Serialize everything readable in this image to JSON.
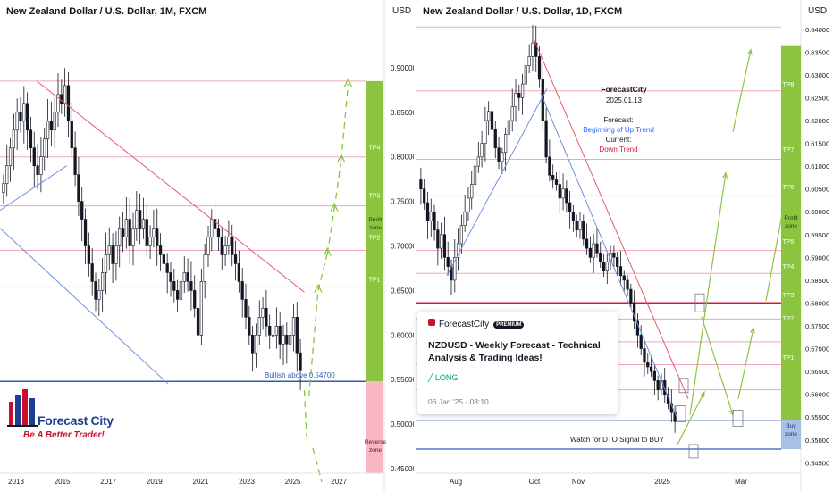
{
  "chart_data": [
    {
      "type": "candlestick",
      "title": "New Zealand Dollar / U.S. Dollar, 1M, FXCM",
      "currency": "USD",
      "x_ticks": [
        "2013",
        "2015",
        "2017",
        "2019",
        "2021",
        "2023",
        "2025",
        "2027"
      ],
      "y_ticks": [
        "0.90000",
        "0.85000",
        "0.80000",
        "0.75000",
        "0.70000",
        "0.65000",
        "0.60000",
        "0.55000",
        "0.50000",
        "0.45000"
      ],
      "ylim": [
        0.45,
        0.95
      ],
      "series_closes": [
        0.77,
        0.79,
        0.81,
        0.83,
        0.85,
        0.84,
        0.86,
        0.83,
        0.81,
        0.79,
        0.78,
        0.8,
        0.82,
        0.84,
        0.83,
        0.85,
        0.87,
        0.86,
        0.88,
        0.84,
        0.81,
        0.78,
        0.75,
        0.73,
        0.7,
        0.68,
        0.66,
        0.64,
        0.65,
        0.67,
        0.69,
        0.7,
        0.68,
        0.7,
        0.72,
        0.71,
        0.73,
        0.7,
        0.72,
        0.74,
        0.72,
        0.73,
        0.7,
        0.71,
        0.72,
        0.7,
        0.69,
        0.68,
        0.67,
        0.66,
        0.65,
        0.64,
        0.66,
        0.67,
        0.66,
        0.65,
        0.63,
        0.6,
        0.66,
        0.69,
        0.71,
        0.73,
        0.72,
        0.71,
        0.69,
        0.7,
        0.71,
        0.69,
        0.68,
        0.66,
        0.64,
        0.62,
        0.6,
        0.58,
        0.6,
        0.62,
        0.63,
        0.61,
        0.6,
        0.6,
        0.61,
        0.59,
        0.6,
        0.59,
        0.6,
        0.62,
        0.58,
        0.56
      ],
      "resistance_line": [
        [
          "2013.9",
          0.885
        ],
        [
          "2025.5",
          0.648
        ]
      ],
      "support_channel_line": [
        [
          "2012.3",
          0.72
        ],
        [
          "2019.6",
          0.545
        ]
      ],
      "upper_channel_line": [
        [
          "2012.3",
          0.74
        ],
        [
          "2015.2",
          0.79
        ]
      ],
      "levels": [
        0.885,
        0.8,
        0.745,
        0.695,
        0.654,
        0.548
      ],
      "level_labels": [
        "TP4",
        "TP3",
        "TP2",
        "TP1"
      ],
      "profit_zone_label": "Profit zone",
      "reverse_zone_label": "Reverse zone",
      "annotation": "Bullish above 0.54700",
      "projected_path": [
        [
          "2025.7",
          0.535
        ],
        [
          "2026.1",
          0.654
        ],
        [
          "2026.5",
          0.695
        ],
        [
          "2026.8",
          0.745
        ],
        [
          "2027.1",
          0.8
        ],
        [
          "2027.4",
          0.885
        ]
      ],
      "bearish_path": [
        [
          "2025.5",
          0.548
        ],
        [
          "2025.6",
          0.485
        ]
      ]
    },
    {
      "type": "candlestick",
      "title": "New Zealand Dollar / U.S. Dollar, 1D, FXCM",
      "currency": "USD",
      "x_ticks": [
        "Aug",
        "Oct",
        "Nov",
        "2025",
        "Mar"
      ],
      "y_ticks": [
        "0.64000",
        "0.63500",
        "0.63000",
        "0.62500",
        "0.62000",
        "0.61500",
        "0.61000",
        "0.60500",
        "0.60000",
        "0.59500",
        "0.59000",
        "0.58500",
        "0.58000",
        "0.57500",
        "0.57000",
        "0.56500",
        "0.56000",
        "0.55500",
        "0.55000",
        "0.54500"
      ],
      "ylim": [
        0.5437,
        0.6425
      ],
      "series_closes": [
        0.605,
        0.602,
        0.598,
        0.6,
        0.596,
        0.592,
        0.595,
        0.59,
        0.588,
        0.585,
        0.59,
        0.593,
        0.597,
        0.6,
        0.603,
        0.606,
        0.61,
        0.612,
        0.615,
        0.62,
        0.622,
        0.618,
        0.614,
        0.611,
        0.613,
        0.617,
        0.62,
        0.623,
        0.626,
        0.625,
        0.628,
        0.632,
        0.634,
        0.637,
        0.634,
        0.629,
        0.62,
        0.612,
        0.608,
        0.607,
        0.606,
        0.603,
        0.605,
        0.602,
        0.6,
        0.598,
        0.596,
        0.598,
        0.594,
        0.592,
        0.59,
        0.593,
        0.591,
        0.589,
        0.587,
        0.589,
        0.591,
        0.59,
        0.588,
        0.586,
        0.585,
        0.583,
        0.58,
        0.576,
        0.573,
        0.57,
        0.567,
        0.566,
        0.565,
        0.563,
        0.561,
        0.563,
        0.56,
        0.558,
        0.556,
        0.554
      ],
      "resistance_line": [
        [
          "Oct",
          0.6375
        ],
        [
          "2025",
          0.559
        ]
      ],
      "support_channel_line": [
        [
          "Aug",
          0.586
        ],
        [
          "Oct",
          0.627
        ]
      ],
      "lower_channel_line": [
        [
          "Oct",
          0.626
        ],
        [
          "2025",
          0.555
        ]
      ],
      "levels": [
        0.6405,
        0.6265,
        0.6115,
        0.6035,
        0.5915,
        0.5865,
        0.58,
        0.5765,
        0.5715,
        0.5665,
        0.561,
        0.5543,
        0.548
      ],
      "level_labels": [
        "TP8",
        "TP7",
        "TP6",
        "TP5",
        "TP4",
        "TP3",
        "TP2",
        "TP1"
      ],
      "key_level": 0.58,
      "profit_zone_label": "Profit zone",
      "buy_zone_label": "Buy zone",
      "annotation_dto": "Watch for DTO Signal to BUY",
      "forecast_box": {
        "author": "ForecastCity",
        "date": "2025.01.13",
        "forecast_label": "Forecast:",
        "forecast_value": "Beginning of Up Trend",
        "current_label": "Current:",
        "current_value": "Down Trend"
      },
      "projected_path": [
        [
          "2025",
          0.549
        ],
        [
          "2025",
          0.5555
        ],
        [
          "2025",
          0.575
        ],
        [
          "Mar",
          0.5555
        ],
        [
          "Mar",
          0.573
        ],
        [
          "Mar",
          0.58
        ],
        [
          "Mar",
          0.6355
        ]
      ]
    }
  ],
  "idea_card": {
    "author": "ForecastCity",
    "badge": "PREMIUM",
    "title": "NZDUSD - Weekly Forecast - Technical Analysis & Trading Ideas!",
    "direction": "LONG",
    "date": "06 Jan '25 - 08:10"
  },
  "logo": {
    "name": "Forecast City",
    "slogan": "Be A Better Trader!"
  },
  "colors": {
    "up": "#ffffff",
    "down": "#131722",
    "resistance": "#e55675",
    "channel": "#6f8fdd",
    "profit_zone": "#8bc53f",
    "reverse_zone": "#f7b6c1",
    "buy_zone": "#a8bfe6",
    "support": "#2f5bb7",
    "key_level": "#d1193b",
    "projection": "#8bc53f",
    "level_line": "#f0a8b8"
  }
}
